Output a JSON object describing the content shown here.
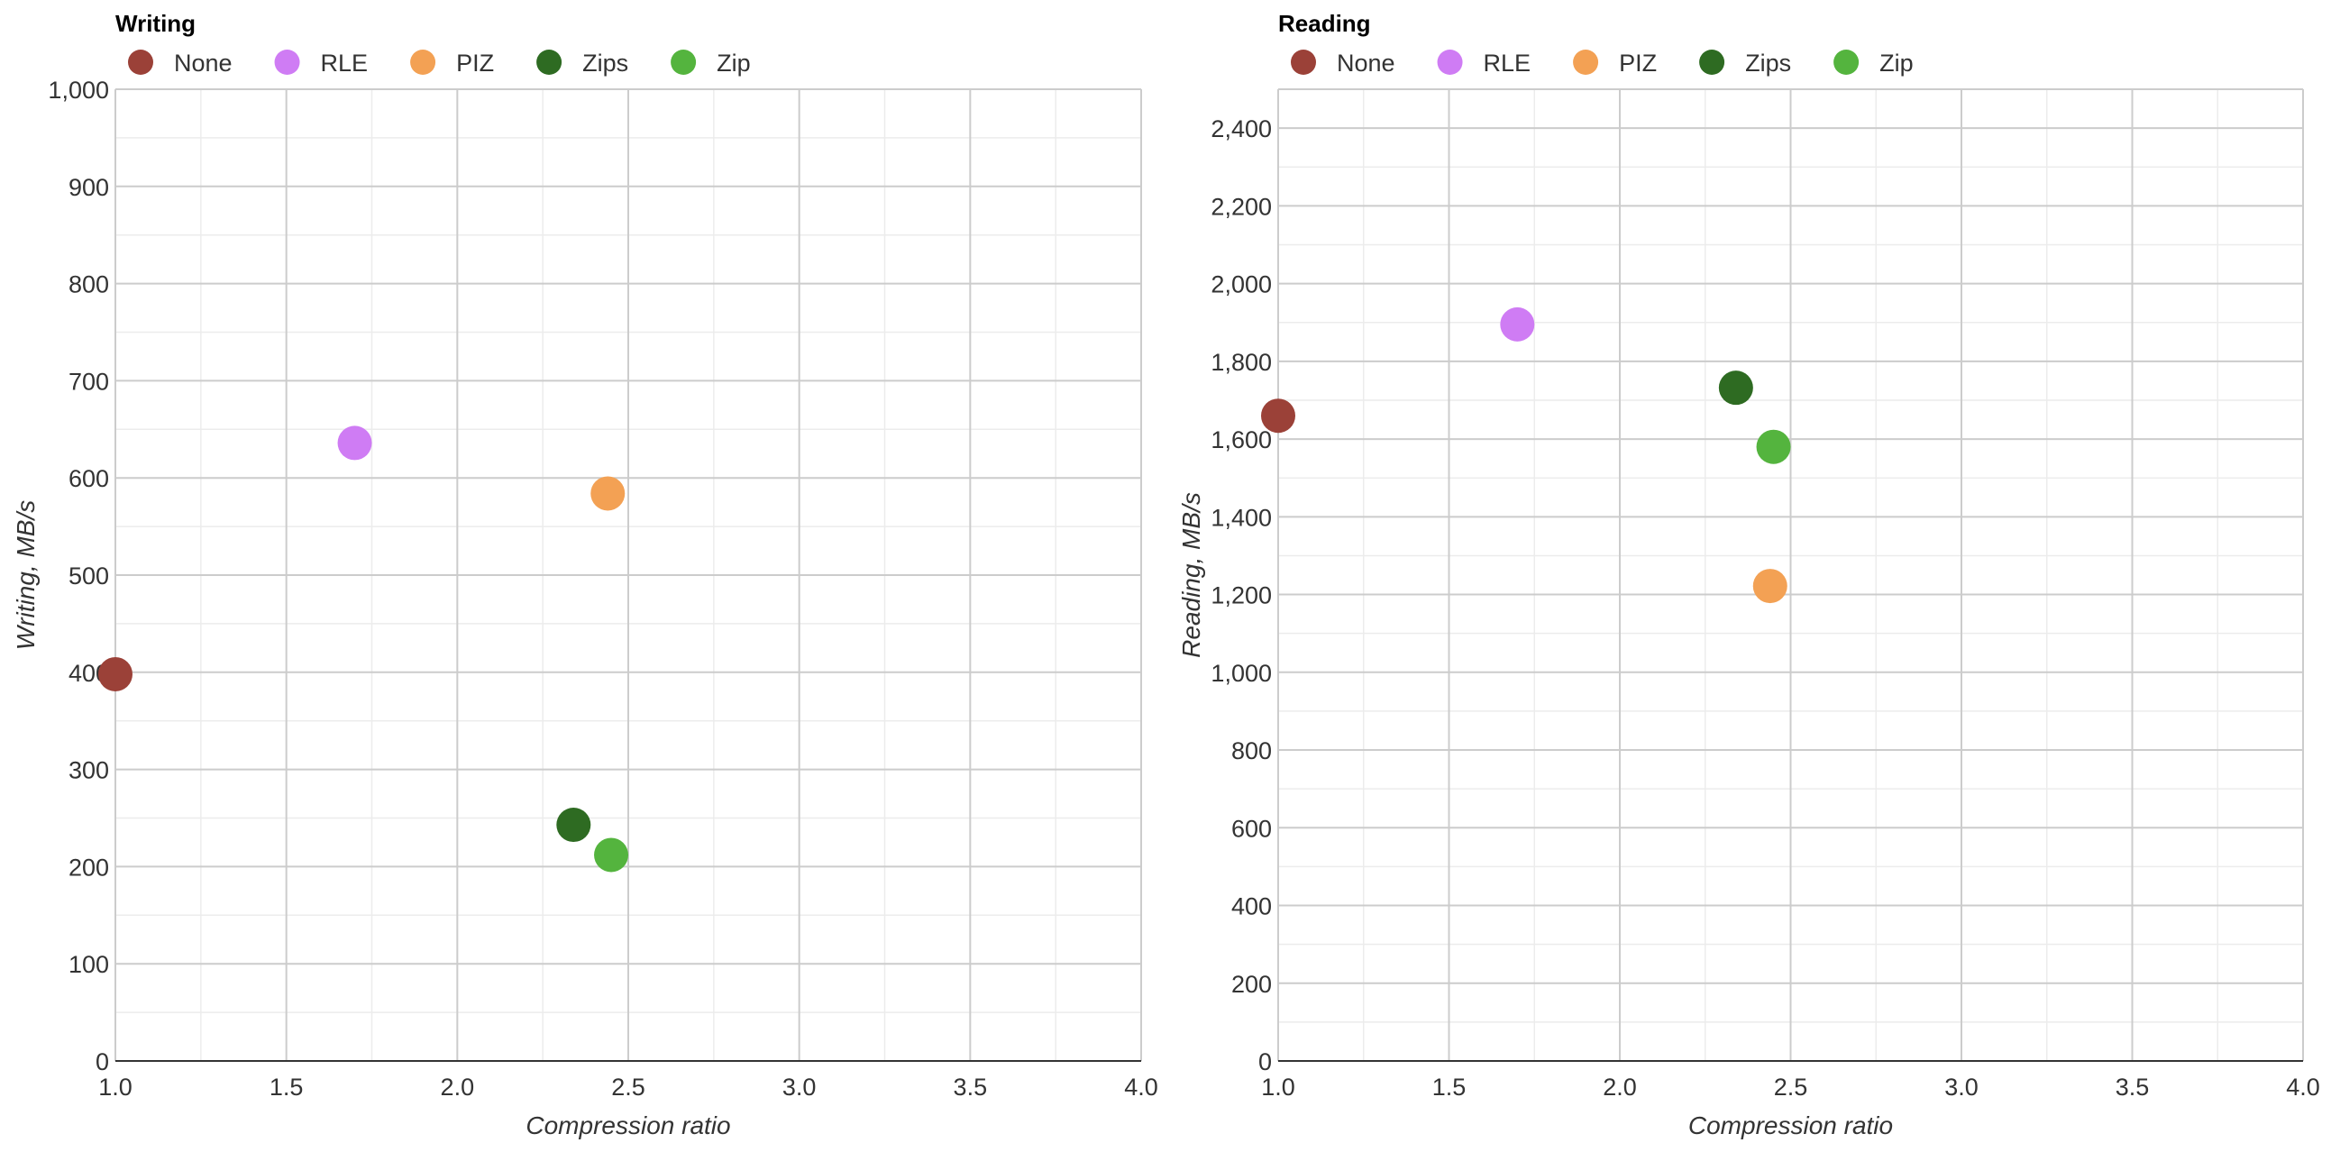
{
  "chart_data": [
    {
      "type": "scatter",
      "title": "Writing",
      "xlabel": "Compression ratio",
      "ylabel": "Writing, MB/s",
      "xlim": [
        1.0,
        4.0
      ],
      "ylim": [
        0,
        1000
      ],
      "x_ticks": [
        1.0,
        1.5,
        2.0,
        2.5,
        3.0,
        3.5,
        4.0
      ],
      "x_tick_labels": [
        "1.0",
        "1.5",
        "2.0",
        "2.5",
        "3.0",
        "3.5",
        "4.0"
      ],
      "y_ticks": [
        0,
        100,
        200,
        300,
        400,
        500,
        600,
        700,
        800,
        900,
        1000
      ],
      "y_tick_labels": [
        "0",
        "100",
        "200",
        "300",
        "400",
        "500",
        "600",
        "700",
        "800",
        "900",
        "1,000"
      ],
      "grid": true,
      "legend_position": "top-left",
      "series": [
        {
          "name": "None",
          "color": "#9b4138",
          "x": [
            1.0
          ],
          "y": [
            398
          ]
        },
        {
          "name": "RLE",
          "color": "#cf7cf4",
          "x": [
            1.7
          ],
          "y": [
            636
          ]
        },
        {
          "name": "PIZ",
          "color": "#f3a154",
          "x": [
            2.44
          ],
          "y": [
            584
          ]
        },
        {
          "name": "Zips",
          "color": "#2e6b22",
          "x": [
            2.34
          ],
          "y": [
            243
          ]
        },
        {
          "name": "Zip",
          "color": "#54b43e",
          "x": [
            2.45
          ],
          "y": [
            212
          ]
        }
      ]
    },
    {
      "type": "scatter",
      "title": "Reading",
      "xlabel": "Compression ratio",
      "ylabel": "Reading, MB/s",
      "xlim": [
        1.0,
        4.0
      ],
      "ylim": [
        0,
        2500
      ],
      "x_ticks": [
        1.0,
        1.5,
        2.0,
        2.5,
        3.0,
        3.5,
        4.0
      ],
      "x_tick_labels": [
        "1.0",
        "1.5",
        "2.0",
        "2.5",
        "3.0",
        "3.5",
        "4.0"
      ],
      "y_ticks": [
        0,
        200,
        400,
        600,
        800,
        1000,
        1200,
        1400,
        1600,
        1800,
        2000,
        2200,
        2400
      ],
      "y_tick_labels": [
        "0",
        "200",
        "400",
        "600",
        "800",
        "1,000",
        "1,200",
        "1,400",
        "1,600",
        "1,800",
        "2,000",
        "2,200",
        "2,400"
      ],
      "grid": true,
      "legend_position": "top-left",
      "series": [
        {
          "name": "None",
          "color": "#9b4138",
          "x": [
            1.0
          ],
          "y": [
            1660
          ]
        },
        {
          "name": "RLE",
          "color": "#cf7cf4",
          "x": [
            1.7
          ],
          "y": [
            1895
          ]
        },
        {
          "name": "PIZ",
          "color": "#f3a154",
          "x": [
            2.44
          ],
          "y": [
            1222
          ]
        },
        {
          "name": "Zips",
          "color": "#2e6b22",
          "x": [
            2.34
          ],
          "y": [
            1732
          ]
        },
        {
          "name": "Zip",
          "color": "#54b43e",
          "x": [
            2.45
          ],
          "y": [
            1580
          ]
        }
      ]
    }
  ]
}
